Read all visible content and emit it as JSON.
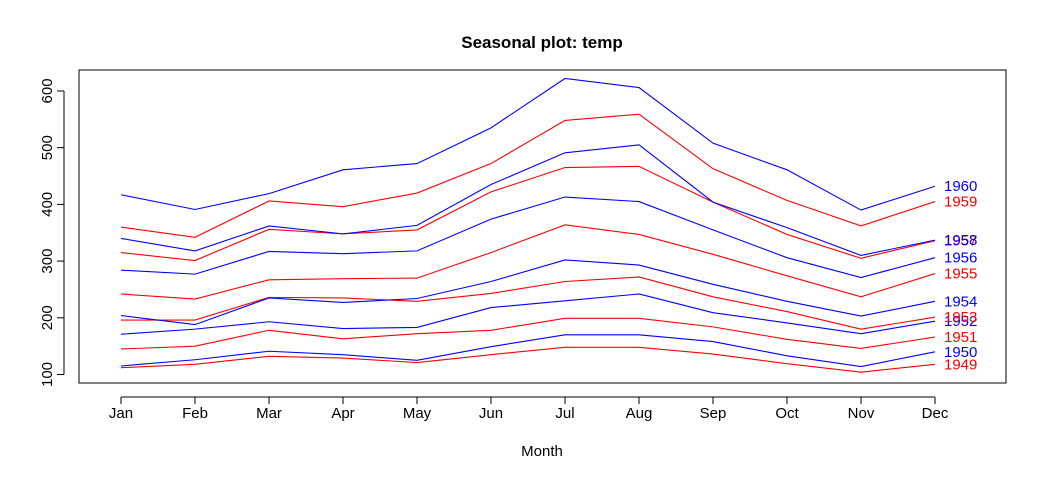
{
  "chart_data": {
    "type": "line",
    "title": "Seasonal plot: temp",
    "xlabel": "Month",
    "ylabel": "",
    "categories": [
      "Jan",
      "Feb",
      "Mar",
      "Apr",
      "May",
      "Jun",
      "Jul",
      "Aug",
      "Sep",
      "Oct",
      "Nov",
      "Dec"
    ],
    "ylim": [
      85,
      637
    ],
    "yticks": [
      100,
      200,
      300,
      400,
      500,
      600
    ],
    "grid": false,
    "colors": {
      "odd_years": "#ff0000",
      "even_years": "#0000ff"
    },
    "series": [
      {
        "name": "1949",
        "color": "#ff0000",
        "values": [
          112,
          118,
          132,
          129,
          121,
          135,
          148,
          148,
          136,
          119,
          104,
          118
        ]
      },
      {
        "name": "1950",
        "color": "#0000ff",
        "values": [
          115,
          126,
          141,
          135,
          125,
          149,
          170,
          170,
          158,
          133,
          114,
          140
        ]
      },
      {
        "name": "1951",
        "color": "#ff0000",
        "values": [
          145,
          150,
          178,
          163,
          172,
          178,
          199,
          199,
          184,
          162,
          146,
          166
        ]
      },
      {
        "name": "1952",
        "color": "#0000ff",
        "values": [
          171,
          180,
          193,
          181,
          183,
          218,
          230,
          242,
          209,
          191,
          172,
          194
        ]
      },
      {
        "name": "1953",
        "color": "#ff0000",
        "values": [
          196,
          196,
          236,
          235,
          229,
          243,
          264,
          272,
          237,
          211,
          180,
          201
        ]
      },
      {
        "name": "1954",
        "color": "#0000ff",
        "values": [
          204,
          188,
          235,
          227,
          234,
          264,
          302,
          293,
          259,
          229,
          203,
          229
        ]
      },
      {
        "name": "1955",
        "color": "#ff0000",
        "values": [
          242,
          233,
          267,
          269,
          270,
          315,
          364,
          347,
          312,
          274,
          237,
          278
        ]
      },
      {
        "name": "1956",
        "color": "#0000ff",
        "values": [
          284,
          277,
          317,
          313,
          318,
          374,
          413,
          405,
          355,
          306,
          271,
          306
        ]
      },
      {
        "name": "1957",
        "color": "#ff0000",
        "values": [
          315,
          301,
          356,
          348,
          355,
          422,
          465,
          467,
          404,
          347,
          305,
          336
        ]
      },
      {
        "name": "1958",
        "color": "#0000ff",
        "values": [
          340,
          318,
          362,
          348,
          363,
          435,
          491,
          505,
          404,
          359,
          310,
          337
        ]
      },
      {
        "name": "1959",
        "color": "#ff0000",
        "values": [
          360,
          342,
          406,
          396,
          420,
          472,
          548,
          559,
          463,
          407,
          362,
          405
        ]
      },
      {
        "name": "1960",
        "color": "#0000ff",
        "values": [
          417,
          391,
          419,
          461,
          472,
          535,
          622,
          606,
          508,
          461,
          390,
          432
        ]
      }
    ]
  }
}
